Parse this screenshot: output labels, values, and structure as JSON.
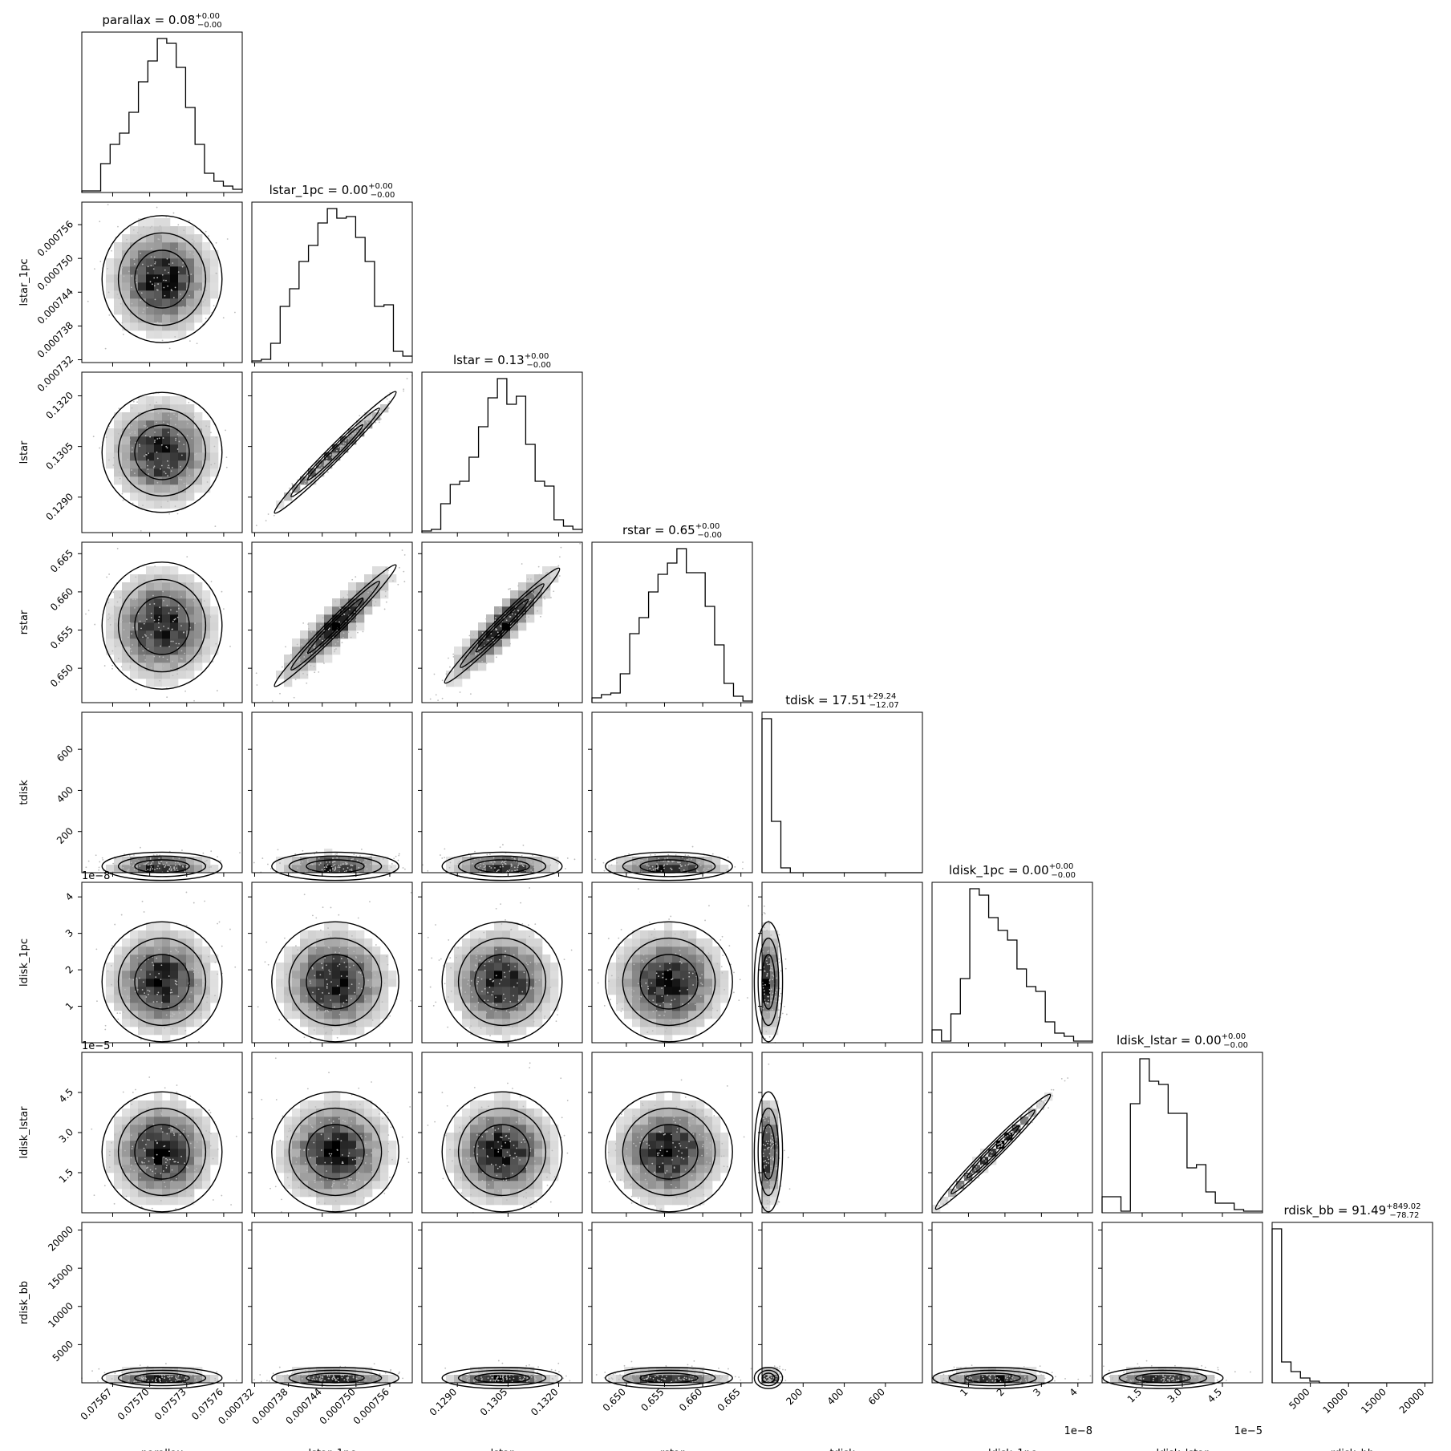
{
  "chart_data": {
    "type": "corner",
    "params": [
      {
        "name": "parallax",
        "title": "parallax = 0.08",
        "median": "0.08",
        "plus": "+0.00",
        "minus": "−0.00",
        "range": [
          0.075645,
          0.075775
        ],
        "ticks": [
          {
            "v": 0.07567,
            "label": "0.07567"
          },
          {
            "v": 0.0757,
            "label": "0.07570"
          },
          {
            "v": 0.07573,
            "label": "0.07573"
          },
          {
            "v": 0.07576,
            "label": "0.07576"
          }
        ],
        "hist": [
          0.01,
          0.01,
          0.18,
          0.3,
          0.37,
          0.5,
          0.69,
          0.82,
          0.96,
          0.93,
          0.78,
          0.53,
          0.3,
          0.12,
          0.07,
          0.04,
          0.02
        ],
        "mean": 0.5,
        "sd": 0.17,
        "exp": ""
      },
      {
        "name": "lstar_1pc",
        "title": "lstar_1pc = 0.00",
        "median": "0.00",
        "plus": "+0.00",
        "minus": "−0.00",
        "range": [
          0.0007315,
          0.00076
        ],
        "ticks": [
          {
            "v": 0.000732,
            "label": "0.000732"
          },
          {
            "v": 0.000738,
            "label": "0.000738"
          },
          {
            "v": 0.000744,
            "label": "0.000744"
          },
          {
            "v": 0.00075,
            "label": "0.000750"
          },
          {
            "v": 0.000756,
            "label": "0.000756"
          }
        ],
        "hist": [
          0.01,
          0.02,
          0.12,
          0.35,
          0.46,
          0.63,
          0.73,
          0.87,
          0.96,
          0.9,
          0.91,
          0.78,
          0.63,
          0.35,
          0.36,
          0.07,
          0.04
        ],
        "mean": 0.52,
        "sd": 0.18,
        "exp": ""
      },
      {
        "name": "lstar",
        "title": "lstar = 0.13",
        "median": "0.13",
        "plus": "+0.00",
        "minus": "−0.00",
        "range": [
          0.12795,
          0.1327
        ],
        "ticks": [
          {
            "v": 0.129,
            "label": "0.1290"
          },
          {
            "v": 0.1305,
            "label": "0.1305"
          },
          {
            "v": 0.132,
            "label": "0.1320"
          }
        ],
        "hist": [
          0.01,
          0.02,
          0.18,
          0.3,
          0.32,
          0.47,
          0.66,
          0.84,
          0.96,
          0.8,
          0.85,
          0.55,
          0.32,
          0.29,
          0.08,
          0.04,
          0.02
        ],
        "mean": 0.5,
        "sd": 0.17,
        "exp": ""
      },
      {
        "name": "rstar",
        "title": "rstar = 0.65",
        "median": "0.65",
        "plus": "+0.00",
        "minus": "−0.00",
        "range": [
          0.6455,
          0.6665
        ],
        "ticks": [
          {
            "v": 0.65,
            "label": "0.650"
          },
          {
            "v": 0.655,
            "label": "0.655"
          },
          {
            "v": 0.66,
            "label": "0.660"
          },
          {
            "v": 0.665,
            "label": "0.665"
          }
        ],
        "hist": [
          0.03,
          0.05,
          0.06,
          0.18,
          0.43,
          0.53,
          0.69,
          0.8,
          0.87,
          0.96,
          0.81,
          0.81,
          0.6,
          0.36,
          0.12,
          0.04,
          0.01
        ],
        "mean": 0.48,
        "sd": 0.18,
        "exp": ""
      },
      {
        "name": "tdisk",
        "title": "tdisk = 17.51",
        "median": "17.51",
        "plus": "+29.24",
        "minus": "−12.07",
        "range": [
          0,
          780
        ],
        "ticks": [
          {
            "v": 200,
            "label": "200"
          },
          {
            "v": 400,
            "label": "400"
          },
          {
            "v": 600,
            "label": "600"
          }
        ],
        "hist": [
          0.96,
          0.32,
          0.03,
          0.0,
          0.0,
          0.0,
          0.0,
          0.0,
          0.0,
          0.0,
          0.0,
          0.0,
          0.0,
          0.0,
          0.0,
          0.0,
          0.0
        ],
        "mean": 0.04,
        "sd": 0.04,
        "exp": ""
      },
      {
        "name": "ldisk_1pc",
        "title": "ldisk_1pc = 0.00",
        "median": "0.00",
        "plus": "+0.00",
        "minus": "−0.00",
        "range": [
          0.0,
          4.4
        ],
        "ticks": [
          {
            "v": 1,
            "label": "1"
          },
          {
            "v": 2,
            "label": "2"
          },
          {
            "v": 3,
            "label": "3"
          },
          {
            "v": 4,
            "label": "4"
          }
        ],
        "hist": [
          0.08,
          0.01,
          0.18,
          0.4,
          0.96,
          0.92,
          0.78,
          0.7,
          0.64,
          0.46,
          0.35,
          0.32,
          0.13,
          0.06,
          0.04,
          0.01,
          0.01
        ],
        "mean": 0.38,
        "sd": 0.17,
        "exp": "1e−8"
      },
      {
        "name": "ldisk_lstar",
        "title": "ldisk_lstar = 0.00",
        "median": "0.00",
        "plus": "+0.00",
        "minus": "−0.00",
        "range": [
          0.0,
          6.0
        ],
        "ticks": [
          {
            "v": 1.5,
            "label": "1.5"
          },
          {
            "v": 3.0,
            "label": "3.0"
          },
          {
            "v": 4.5,
            "label": "4.5"
          }
        ],
        "hist": [
          0.1,
          0.1,
          0.01,
          0.68,
          0.96,
          0.82,
          0.8,
          0.62,
          0.62,
          0.28,
          0.3,
          0.13,
          0.06,
          0.06,
          0.02,
          0.01,
          0.01
        ],
        "mean": 0.38,
        "sd": 0.17,
        "exp": "1e−5"
      },
      {
        "name": "rdisk_bb",
        "title": "rdisk_bb = 91.49",
        "median": "91.49",
        "plus": "+849.02",
        "minus": "−78.72",
        "range": [
          0,
          21000
        ],
        "ticks": [
          {
            "v": 5000,
            "label": "5000"
          },
          {
            "v": 10000,
            "label": "10000"
          },
          {
            "v": 15000,
            "label": "15000"
          },
          {
            "v": 20000,
            "label": "20000"
          }
        ],
        "hist": [
          0.96,
          0.13,
          0.07,
          0.03,
          0.01,
          0.0,
          0.0,
          0.0,
          0.0,
          0.0,
          0.0,
          0.0,
          0.0,
          0.0,
          0.0,
          0.0,
          0.0
        ],
        "mean": 0.03,
        "sd": 0.03,
        "exp": ""
      }
    ],
    "correlations": {
      "1-2": 0.99,
      "1-3": 0.9,
      "2-3": 0.9,
      "5-6": 0.99
    },
    "grid": false
  }
}
